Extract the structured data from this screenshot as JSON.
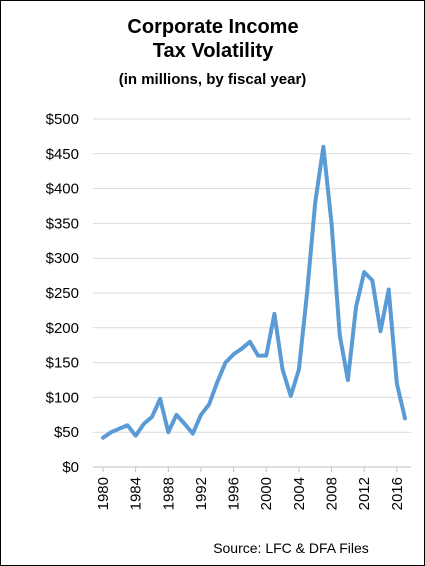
{
  "chart_data": {
    "type": "line",
    "title": "Corporate Income Tax Volatility",
    "subtitle": "(in millions, by fiscal year)",
    "source": "Source: LFC & DFA Files",
    "x": [
      1980,
      1981,
      1982,
      1983,
      1984,
      1985,
      1986,
      1987,
      1988,
      1989,
      1990,
      1991,
      1992,
      1993,
      1994,
      1995,
      1996,
      1997,
      1998,
      1999,
      2000,
      2001,
      2002,
      2003,
      2004,
      2005,
      2006,
      2007,
      2008,
      2009,
      2010,
      2011,
      2012,
      2013,
      2014,
      2015,
      2016,
      2017
    ],
    "series": [
      {
        "name": "Corporate Income Tax",
        "color": "#5b9bd5",
        "values": [
          42,
          50,
          55,
          60,
          45,
          62,
          72,
          98,
          50,
          75,
          62,
          48,
          75,
          90,
          122,
          150,
          162,
          170,
          180,
          160,
          160,
          220,
          140,
          102,
          140,
          250,
          380,
          460,
          350,
          190,
          125,
          230,
          280,
          268,
          195,
          255,
          120,
          70
        ]
      }
    ],
    "xlim": [
      1980,
      2017
    ],
    "xticks": [
      1980,
      1984,
      1988,
      1992,
      1996,
      2000,
      2004,
      2008,
      2012,
      2016
    ],
    "ylim": [
      0,
      500
    ],
    "yticks": [
      {
        "value": 0,
        "label": "$0"
      },
      {
        "value": 50,
        "label": "$50"
      },
      {
        "value": 100,
        "label": "$100"
      },
      {
        "value": 150,
        "label": "$150"
      },
      {
        "value": 200,
        "label": "$200"
      },
      {
        "value": 250,
        "label": "$250"
      },
      {
        "value": 300,
        "label": "$300"
      },
      {
        "value": 350,
        "label": "$350"
      },
      {
        "value": 400,
        "label": "$400"
      },
      {
        "value": 450,
        "label": "$450"
      },
      {
        "value": 500,
        "label": "$500"
      }
    ],
    "grid": true
  }
}
